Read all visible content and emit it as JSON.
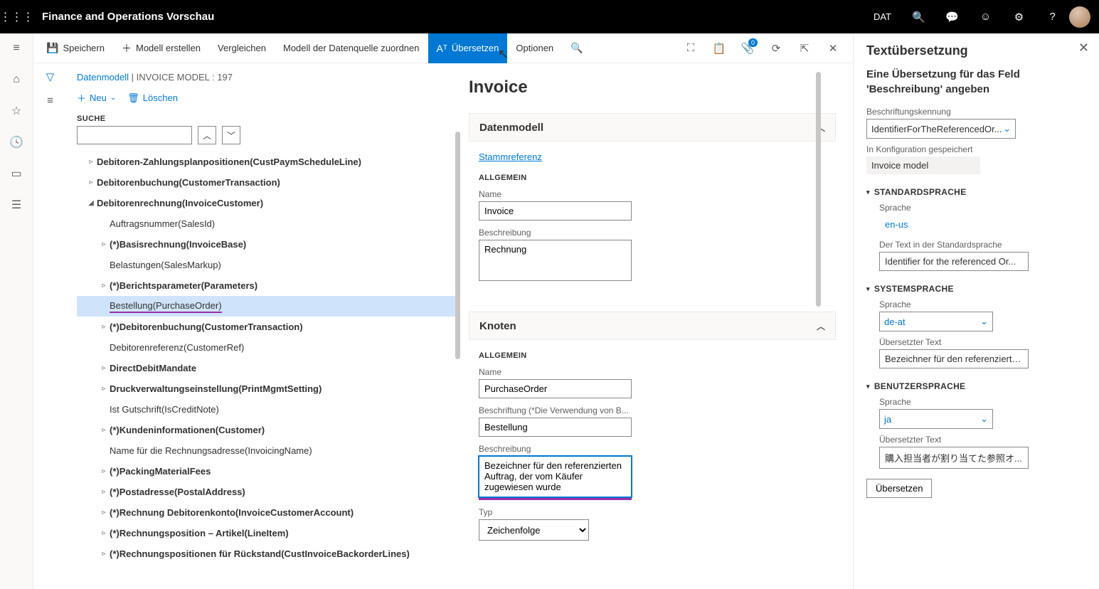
{
  "topbar": {
    "app_title": "Finance and Operations Vorschau",
    "company": "DAT"
  },
  "cmdbar": {
    "save": "Speichern",
    "create_model": "Modell erstellen",
    "compare": "Vergleichen",
    "map_datasource": "Modell der Datenquelle zuordnen",
    "translate": "Übersetzen",
    "options": "Optionen",
    "badge": "0"
  },
  "crumb": {
    "link": "Datenmodell",
    "sep": "  |  ",
    "current": "INVOICE MODEL : 197"
  },
  "toolbar2": {
    "new": "Neu",
    "delete": "Löschen"
  },
  "search_label": "SUCHE",
  "tree": [
    {
      "indent": 0,
      "chev": "▹",
      "label": "Debitoren-Zahlungsplanpositionen(CustPaymScheduleLine)"
    },
    {
      "indent": 0,
      "chev": "▹",
      "label": "Debitorenbuchung(CustomerTransaction)"
    },
    {
      "indent": 0,
      "chev": "◢",
      "label": "Debitorenrechnung(InvoiceCustomer)"
    },
    {
      "indent": 1,
      "chev": "",
      "label": "Auftragsnummer(SalesId)"
    },
    {
      "indent": 1,
      "chev": "▹",
      "label": "(*)Basisrechnung(InvoiceBase)"
    },
    {
      "indent": 1,
      "chev": "",
      "label": "Belastungen(SalesMarkup)"
    },
    {
      "indent": 1,
      "chev": "▹",
      "label": "(*)Berichtsparameter(Parameters)"
    },
    {
      "indent": 1,
      "chev": "",
      "label": "Bestellung(PurchaseOrder)",
      "sel": true,
      "ul": true
    },
    {
      "indent": 1,
      "chev": "▹",
      "label": "(*)Debitorenbuchung(CustomerTransaction)"
    },
    {
      "indent": 1,
      "chev": "",
      "label": "Debitorenreferenz(CustomerRef)"
    },
    {
      "indent": 1,
      "chev": "▹",
      "label": "DirectDebitMandate"
    },
    {
      "indent": 1,
      "chev": "▹",
      "label": "Druckverwaltungseinstellung(PrintMgmtSetting)"
    },
    {
      "indent": 1,
      "chev": "",
      "label": "Ist Gutschrift(IsCreditNote)"
    },
    {
      "indent": 1,
      "chev": "▹",
      "label": "(*)Kundeninformationen(Customer)"
    },
    {
      "indent": 1,
      "chev": "",
      "label": "Name für die Rechnungsadresse(InvoicingName)"
    },
    {
      "indent": 1,
      "chev": "▹",
      "label": "(*)PackingMaterialFees"
    },
    {
      "indent": 1,
      "chev": "▹",
      "label": "(*)Postadresse(PostalAddress)"
    },
    {
      "indent": 1,
      "chev": "▹",
      "label": "(*)Rechnung Debitorenkonto(InvoiceCustomerAccount)"
    },
    {
      "indent": 1,
      "chev": "▹",
      "label": "(*)Rechnungsposition – Artikel(LineItem)"
    },
    {
      "indent": 1,
      "chev": "▹",
      "label": "(*)Rechnungspositionen für Rückstand(CustInvoiceBackorderLines)"
    }
  ],
  "mid": {
    "title": "Invoice",
    "card1": {
      "header": "Datenmodell",
      "link": "Stammreferenz",
      "section": "ALLGEMEIN",
      "name_lbl": "Name",
      "name_val": "Invoice",
      "desc_lbl": "Beschreibung",
      "desc_val": "Rechnung"
    },
    "card2": {
      "header": "Knoten",
      "section": "ALLGEMEIN",
      "name_lbl": "Name",
      "name_val": "PurchaseOrder",
      "caption_lbl": "Beschriftung (*Die Verwendung von B...",
      "caption_val": "Bestellung",
      "desc_lbl": "Beschreibung",
      "desc_val": "Bezeichner für den referenzierten Auftrag, der vom Käufer zugewiesen wurde",
      "type_lbl": "Typ",
      "type_val": "Zeichenfolge"
    }
  },
  "rp": {
    "title": "Textübersetzung",
    "subtitle": "Eine Übersetzung für das Feld 'Beschreibung' angeben",
    "label_id_lbl": "Beschriftungskennung",
    "label_id_val": "IdentifierForTheReferencedOr...",
    "saved_lbl": "In Konfiguration gespeichert",
    "saved_val": "Invoice model",
    "g1": "STANDARDSPRACHE",
    "g1_lang_lbl": "Sprache",
    "g1_lang_val": "en-us",
    "g1_text_lbl": "Der Text in der Standardsprache",
    "g1_text_val": "Identifier for the referenced Or...",
    "g2": "SYSTEMSPRACHE",
    "g2_lang_lbl": "Sprache",
    "g2_lang_val": "de-at",
    "g2_text_lbl": "Übersetzter Text",
    "g2_text_val": "Bezeichner für den referenzierte...",
    "g3": "BENUTZERSPRACHE",
    "g3_lang_lbl": "Sprache",
    "g3_lang_val": "ja",
    "g3_text_lbl": "Übersetzter Text",
    "g3_text_val": "購入担当者が割り当てた参照オ...",
    "btn": "Übersetzen"
  }
}
